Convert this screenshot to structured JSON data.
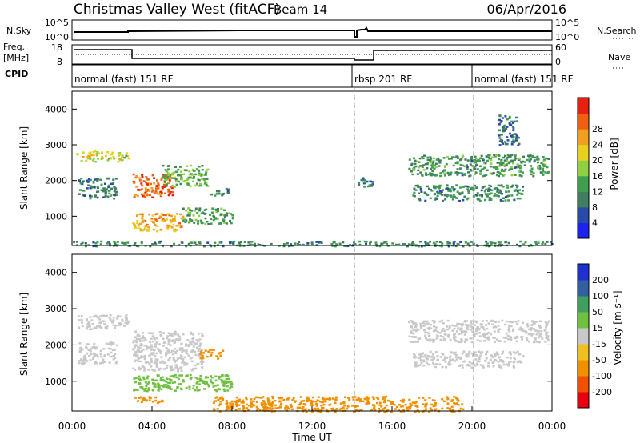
{
  "header": {
    "title": "Christmas Valley West (fitACF)",
    "beam": "Beam 14",
    "date": "06/Apr/2016"
  },
  "top_panels": {
    "nsky": {
      "label": "N.Sky",
      "tick_top": "10^5",
      "tick_bottom": "10^0",
      "right_tick_top": "10^5",
      "right_tick_bottom": "10^0",
      "right_label": "N.Search"
    },
    "freq": {
      "label_line1": "Freq.",
      "label_line2": "[MHz]",
      "tick_top": "18",
      "tick_bottom": "8",
      "right_tick_top": "60",
      "right_tick_bottom": "0",
      "right_label": "Nave"
    },
    "cpid": {
      "label": "CPID",
      "segments": [
        {
          "text": "normal (fast) 151 RF",
          "start_hour": 0
        },
        {
          "text": "rbsp 201 RF",
          "start_hour": 14
        },
        {
          "text": "normal (fast) 151 RF",
          "start_hour": 20
        }
      ]
    }
  },
  "colors": {
    "power": [
      "#1c22f0",
      "#2a4aa8",
      "#3f7f5f",
      "#3f9f4f",
      "#8fd040",
      "#e8d020",
      "#f0a020",
      "#f06010",
      "#e82010"
    ],
    "velocity": [
      "#e80010",
      "#f05000",
      "#f09000",
      "#f0c020",
      "#c8c8c8",
      "#70c040",
      "#3f9f5f",
      "#3060a0",
      "#2030d0"
    ]
  },
  "chart_data": [
    {
      "type": "heatmap",
      "name": "Power",
      "ylabel": "Slant Range [km]",
      "xlim_hours": [
        0,
        24
      ],
      "ylim_km": [
        180,
        4500
      ],
      "y_ticks": [
        1000,
        2000,
        3000,
        4000
      ],
      "colorbar": {
        "label": "Power [dB]",
        "ticks": [
          "4",
          "8",
          "12",
          "16",
          "20",
          "24",
          "28"
        ],
        "range": [
          0,
          32
        ]
      },
      "features": [
        {
          "hours": [
            0.2,
            2.8
          ],
          "range_km": [
            2550,
            2850
          ],
          "value": 18
        },
        {
          "hours": [
            0.3,
            2.2
          ],
          "range_km": [
            1500,
            2100
          ],
          "value": 9
        },
        {
          "hours": [
            3.0,
            5.0
          ],
          "range_km": [
            1550,
            2200
          ],
          "value": 27
        },
        {
          "hours": [
            4.5,
            6.8
          ],
          "range_km": [
            1850,
            2450
          ],
          "value": 14
        },
        {
          "hours": [
            3.0,
            5.5
          ],
          "range_km": [
            600,
            1100
          ],
          "value": 22
        },
        {
          "hours": [
            5.5,
            8.0
          ],
          "range_km": [
            800,
            1250
          ],
          "value": 12
        },
        {
          "hours": [
            6.8,
            7.8
          ],
          "range_km": [
            1600,
            1800
          ],
          "value": 10
        },
        {
          "hours": [
            0,
            24
          ],
          "range_km": [
            180,
            320
          ],
          "value": 10
        },
        {
          "hours": [
            14.2,
            15.0
          ],
          "range_km": [
            1850,
            2150
          ],
          "value": 9
        },
        {
          "hours": [
            16.8,
            23.8
          ],
          "range_km": [
            2150,
            2750
          ],
          "value": 11
        },
        {
          "hours": [
            17.0,
            22.5
          ],
          "range_km": [
            1450,
            1900
          ],
          "value": 10
        },
        {
          "hours": [
            21.3,
            22.3
          ],
          "range_km": [
            3000,
            3850
          ],
          "value": 8
        }
      ]
    },
    {
      "type": "heatmap",
      "name": "Velocity",
      "ylabel": "Slant Range [km]",
      "xlabel": "Time UT",
      "x_ticks": [
        "00:00",
        "04:00",
        "08:00",
        "12:00",
        "16:00",
        "20:00",
        "00:00"
      ],
      "xlim_hours": [
        0,
        24
      ],
      "ylim_km": [
        180,
        4500
      ],
      "y_ticks": [
        1000,
        2000,
        3000,
        4000
      ],
      "colorbar": {
        "label": "Velocity [m s⁻¹]",
        "ticks": [
          "-200",
          "-100",
          "-50",
          "-15",
          "15",
          "50",
          "100",
          "200"
        ],
        "range": [
          -250,
          250
        ]
      },
      "features": [
        {
          "hours": [
            0.2,
            2.8
          ],
          "range_km": [
            2450,
            2850
          ],
          "value": 0
        },
        {
          "hours": [
            0.3,
            2.2
          ],
          "range_km": [
            1500,
            2100
          ],
          "value": 0
        },
        {
          "hours": [
            3.0,
            6.5
          ],
          "range_km": [
            1300,
            2400
          ],
          "value": 0
        },
        {
          "hours": [
            6.3,
            7.5
          ],
          "range_km": [
            1650,
            1900
          ],
          "value": -60
        },
        {
          "hours": [
            3.0,
            8.0
          ],
          "range_km": [
            750,
            1200
          ],
          "value": 20
        },
        {
          "hours": [
            3.0,
            4.5
          ],
          "range_km": [
            400,
            600
          ],
          "value": -70
        },
        {
          "hours": [
            7.0,
            19.5
          ],
          "range_km": [
            180,
            600
          ],
          "value": -60
        },
        {
          "hours": [
            16.8,
            23.8
          ],
          "range_km": [
            2100,
            2700
          ],
          "value": 0
        },
        {
          "hours": [
            17.0,
            22.5
          ],
          "range_km": [
            1400,
            1850
          ],
          "value": 0
        }
      ]
    }
  ]
}
